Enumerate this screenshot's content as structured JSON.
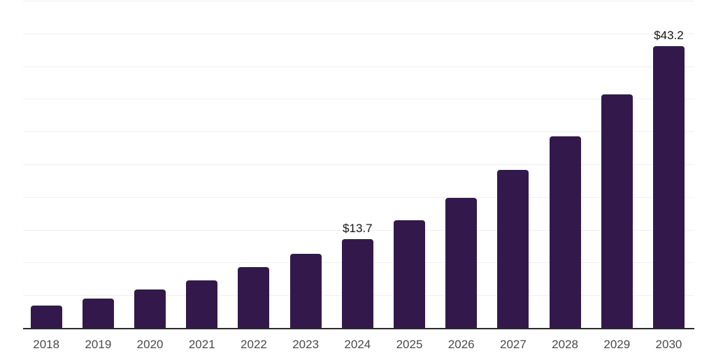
{
  "chart_data": {
    "type": "bar",
    "title": "",
    "xlabel": "",
    "ylabel": "",
    "categories": [
      "2018",
      "2019",
      "2020",
      "2021",
      "2022",
      "2023",
      "2024",
      "2025",
      "2026",
      "2027",
      "2028",
      "2029",
      "2030"
    ],
    "values": [
      3.5,
      4.6,
      6.0,
      7.4,
      9.4,
      11.4,
      13.7,
      16.6,
      20.0,
      24.2,
      29.4,
      35.8,
      43.2
    ],
    "value_labels": [
      {
        "category": "2024",
        "text": "$13.7"
      },
      {
        "category": "2030",
        "text": "$43.2"
      }
    ],
    "ylim": [
      0,
      50
    ],
    "gridline_step": 5,
    "grid": "horizontal",
    "legend": "none",
    "colors": {
      "bar": "#33194b",
      "gridline": "#f0f0f0",
      "axis_line": "#2b2b2b",
      "tick_label": "#4a4a4a",
      "value_label": "#141414",
      "background": "#ffffff"
    }
  }
}
